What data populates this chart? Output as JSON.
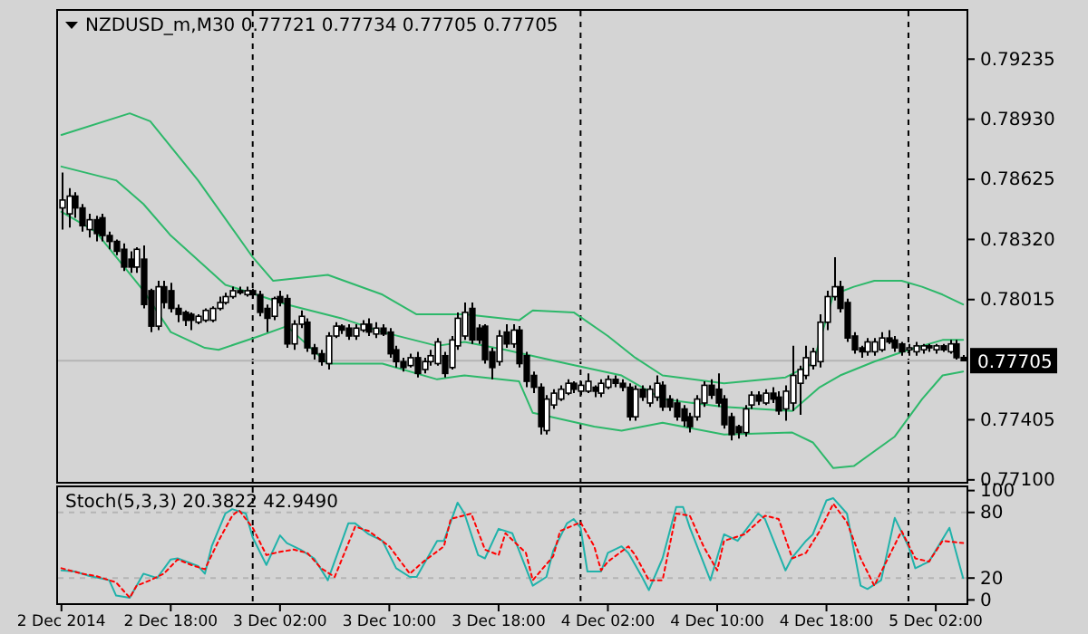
{
  "chart_data": [
    {
      "type": "candlestick",
      "title": "NZDUSD_m,M30  0.77721 0.77734 0.77705 0.77705",
      "x": [
        "2014-12-02T10:00",
        "2014-12-02T10:30",
        "2014-12-02T11:00",
        "2014-12-02T11:30",
        "2014-12-02T12:00",
        "2014-12-02T12:30",
        "2014-12-02T13:00",
        "2014-12-02T13:30",
        "2014-12-02T14:00",
        "2014-12-02T14:30",
        "2014-12-02T15:00",
        "2014-12-02T15:30",
        "2014-12-02T16:00",
        "2014-12-02T16:30",
        "2014-12-02T17:00",
        "2014-12-02T17:30",
        "2014-12-02T18:00",
        "2014-12-02T18:30",
        "2014-12-02T19:00",
        "2014-12-02T19:30",
        "2014-12-02T20:00",
        "2014-12-02T20:30",
        "2014-12-02T21:00",
        "2014-12-02T21:30",
        "2014-12-02T22:00",
        "2014-12-02T22:30",
        "2014-12-02T23:00",
        "2014-12-02T23:30",
        "2014-12-03T00:00",
        "2014-12-03T00:30",
        "2014-12-03T01:00",
        "2014-12-03T01:30",
        "2014-12-03T02:00",
        "2014-12-03T02:30",
        "2014-12-03T03:00",
        "2014-12-03T03:30",
        "2014-12-03T04:00",
        "2014-12-03T04:30",
        "2014-12-03T05:00",
        "2014-12-03T05:30",
        "2014-12-03T06:00",
        "2014-12-03T06:30",
        "2014-12-03T07:00",
        "2014-12-03T07:30",
        "2014-12-03T08:00",
        "2014-12-03T08:30",
        "2014-12-03T09:00",
        "2014-12-03T09:30",
        "2014-12-03T10:00",
        "2014-12-03T10:30",
        "2014-12-03T11:00",
        "2014-12-03T11:30",
        "2014-12-03T12:00",
        "2014-12-03T12:30",
        "2014-12-03T13:00",
        "2014-12-03T13:30",
        "2014-12-03T14:00",
        "2014-12-03T14:30",
        "2014-12-03T15:00",
        "2014-12-03T15:30",
        "2014-12-03T16:00",
        "2014-12-03T16:30",
        "2014-12-03T17:00",
        "2014-12-03T17:30",
        "2014-12-03T18:00",
        "2014-12-03T18:30",
        "2014-12-03T19:00",
        "2014-12-03T19:30",
        "2014-12-03T20:00",
        "2014-12-03T20:30",
        "2014-12-03T21:00",
        "2014-12-03T21:30",
        "2014-12-03T22:00",
        "2014-12-03T22:30",
        "2014-12-03T23:00",
        "2014-12-03T23:30",
        "2014-12-04T00:00",
        "2014-12-04T00:30",
        "2014-12-04T01:00",
        "2014-12-04T01:30",
        "2014-12-04T02:00",
        "2014-12-04T02:30",
        "2014-12-04T03:00",
        "2014-12-04T03:30",
        "2014-12-04T04:00",
        "2014-12-04T04:30",
        "2014-12-04T05:00",
        "2014-12-04T05:30",
        "2014-12-04T06:00",
        "2014-12-04T06:30",
        "2014-12-04T07:00",
        "2014-12-04T07:30",
        "2014-12-04T08:00",
        "2014-12-04T08:30",
        "2014-12-04T09:00",
        "2014-12-04T09:30",
        "2014-12-04T10:00",
        "2014-12-04T10:30",
        "2014-12-04T11:00",
        "2014-12-04T11:30",
        "2014-12-04T12:00",
        "2014-12-04T12:30",
        "2014-12-04T13:00",
        "2014-12-04T13:30",
        "2014-12-04T14:00",
        "2014-12-04T14:30",
        "2014-12-04T15:00",
        "2014-12-04T15:30",
        "2014-12-04T16:00",
        "2014-12-04T16:30",
        "2014-12-04T17:00",
        "2014-12-04T17:30",
        "2014-12-04T18:00",
        "2014-12-04T18:30",
        "2014-12-04T19:00",
        "2014-12-04T19:30",
        "2014-12-04T20:00",
        "2014-12-04T20:30",
        "2014-12-04T21:00",
        "2014-12-04T21:30",
        "2014-12-04T22:00",
        "2014-12-04T22:30",
        "2014-12-04T23:00",
        "2014-12-04T23:30",
        "2014-12-05T00:00",
        "2014-12-05T00:30",
        "2014-12-05T01:00",
        "2014-12-05T01:30",
        "2014-12-05T02:00",
        "2014-12-05T02:30",
        "2014-12-05T03:00",
        "2014-12-05T03:30",
        "2014-12-05T04:00"
      ],
      "ohlc": [
        [
          0.7848,
          0.7866,
          0.7837,
          0.7852
        ],
        [
          0.7845,
          0.7858,
          0.7838,
          0.7854
        ],
        [
          0.7854,
          0.7856,
          0.7843,
          0.7848
        ],
        [
          0.7848,
          0.785,
          0.7836,
          0.7839
        ],
        [
          0.7837,
          0.7845,
          0.7833,
          0.7842
        ],
        [
          0.7842,
          0.7844,
          0.7831,
          0.7835
        ],
        [
          0.7843,
          0.7845,
          0.7831,
          0.7834
        ],
        [
          0.7834,
          0.7836,
          0.7827,
          0.7831
        ],
        [
          0.7831,
          0.7832,
          0.7824,
          0.7826
        ],
        [
          0.7827,
          0.783,
          0.7816,
          0.7818
        ],
        [
          0.7822,
          0.7826,
          0.7815,
          0.7818
        ],
        [
          0.7818,
          0.7828,
          0.7815,
          0.7827
        ],
        [
          0.7822,
          0.7829,
          0.7797,
          0.7799
        ],
        [
          0.7806,
          0.7807,
          0.7785,
          0.7788
        ],
        [
          0.7788,
          0.7811,
          0.7786,
          0.7808
        ],
        [
          0.7808,
          0.7811,
          0.7797,
          0.78
        ],
        [
          0.7806,
          0.781,
          0.7795,
          0.7797
        ],
        [
          0.7797,
          0.7799,
          0.779,
          0.7794
        ],
        [
          0.7795,
          0.7796,
          0.7788,
          0.7791
        ],
        [
          0.7794,
          0.7795,
          0.7786,
          0.7791
        ],
        [
          0.779,
          0.7794,
          0.7789,
          0.7793
        ],
        [
          0.7791,
          0.7797,
          0.779,
          0.7796
        ],
        [
          0.7791,
          0.7798,
          0.779,
          0.7797
        ],
        [
          0.7797,
          0.7803,
          0.7796,
          0.78
        ],
        [
          0.78,
          0.7805,
          0.7799,
          0.7803
        ],
        [
          0.7803,
          0.7808,
          0.7802,
          0.7806
        ],
        [
          0.7806,
          0.7808,
          0.7804,
          0.7805
        ],
        [
          0.7804,
          0.7808,
          0.7803,
          0.7806
        ],
        [
          0.7806,
          0.7807,
          0.7802,
          0.7804
        ],
        [
          0.7804,
          0.7806,
          0.7793,
          0.7795
        ],
        [
          0.7797,
          0.7799,
          0.7785,
          0.7792
        ],
        [
          0.7793,
          0.7803,
          0.7791,
          0.7802
        ],
        [
          0.7803,
          0.7806,
          0.7798,
          0.78
        ],
        [
          0.7802,
          0.7804,
          0.7777,
          0.7779
        ],
        [
          0.7779,
          0.7791,
          0.7776,
          0.7789
        ],
        [
          0.7789,
          0.7796,
          0.7787,
          0.7793
        ],
        [
          0.779,
          0.7792,
          0.7775,
          0.7777
        ],
        [
          0.7777,
          0.7779,
          0.7771,
          0.7774
        ],
        [
          0.7774,
          0.7776,
          0.7768,
          0.777
        ],
        [
          0.7769,
          0.7785,
          0.7766,
          0.7783
        ],
        [
          0.7783,
          0.779,
          0.7782,
          0.7788
        ],
        [
          0.7788,
          0.7789,
          0.7784,
          0.7786
        ],
        [
          0.7787,
          0.7789,
          0.7781,
          0.7783
        ],
        [
          0.7783,
          0.7789,
          0.7781,
          0.7787
        ],
        [
          0.7786,
          0.7791,
          0.7785,
          0.7789
        ],
        [
          0.7789,
          0.7792,
          0.7783,
          0.7785
        ],
        [
          0.7784,
          0.779,
          0.7782,
          0.7787
        ],
        [
          0.7787,
          0.7789,
          0.7783,
          0.7784
        ],
        [
          0.7785,
          0.7787,
          0.7772,
          0.7774
        ],
        [
          0.7776,
          0.7778,
          0.7767,
          0.777
        ],
        [
          0.777,
          0.7772,
          0.7765,
          0.7767
        ],
        [
          0.7768,
          0.7774,
          0.7767,
          0.7772
        ],
        [
          0.7772,
          0.7775,
          0.7762,
          0.7764
        ],
        [
          0.7766,
          0.7772,
          0.7764,
          0.777
        ],
        [
          0.777,
          0.7776,
          0.7768,
          0.7773
        ],
        [
          0.7769,
          0.7782,
          0.7768,
          0.778
        ],
        [
          0.7773,
          0.7775,
          0.7762,
          0.7764
        ],
        [
          0.7767,
          0.7783,
          0.7766,
          0.7781
        ],
        [
          0.7778,
          0.7795,
          0.7776,
          0.7792
        ],
        [
          0.7783,
          0.78,
          0.7781,
          0.7795
        ],
        [
          0.7797,
          0.78,
          0.7779,
          0.7781
        ],
        [
          0.7787,
          0.7789,
          0.7779,
          0.7781
        ],
        [
          0.7788,
          0.7789,
          0.7769,
          0.7771
        ],
        [
          0.7775,
          0.7777,
          0.7761,
          0.7767
        ],
        [
          0.777,
          0.7786,
          0.7768,
          0.7783
        ],
        [
          0.7785,
          0.7789,
          0.7777,
          0.7779
        ],
        [
          0.7779,
          0.7789,
          0.7777,
          0.7786
        ],
        [
          0.7786,
          0.7788,
          0.7767,
          0.7769
        ],
        [
          0.7773,
          0.7775,
          0.7757,
          0.776
        ],
        [
          0.7763,
          0.7765,
          0.7754,
          0.7757
        ],
        [
          0.7757,
          0.7759,
          0.7733,
          0.7737
        ],
        [
          0.7735,
          0.7753,
          0.7733,
          0.7751
        ],
        [
          0.7748,
          0.7756,
          0.7746,
          0.7754
        ],
        [
          0.7751,
          0.7758,
          0.775,
          0.7756
        ],
        [
          0.7754,
          0.7761,
          0.7753,
          0.7759
        ],
        [
          0.7759,
          0.776,
          0.7754,
          0.7756
        ],
        [
          0.7755,
          0.776,
          0.7753,
          0.7758
        ],
        [
          0.7755,
          0.7764,
          0.7754,
          0.776
        ],
        [
          0.7757,
          0.7758,
          0.7752,
          0.7755
        ],
        [
          0.7754,
          0.7761,
          0.7752,
          0.7759
        ],
        [
          0.7757,
          0.7763,
          0.7756,
          0.7761
        ],
        [
          0.7761,
          0.7763,
          0.7757,
          0.7759
        ],
        [
          0.7759,
          0.7761,
          0.7755,
          0.7757
        ],
        [
          0.7757,
          0.7759,
          0.774,
          0.7742
        ],
        [
          0.7742,
          0.7758,
          0.774,
          0.7756
        ],
        [
          0.7756,
          0.7758,
          0.775,
          0.7752
        ],
        [
          0.7749,
          0.7758,
          0.7747,
          0.7756
        ],
        [
          0.7752,
          0.7763,
          0.775,
          0.7759
        ],
        [
          0.7758,
          0.776,
          0.7745,
          0.7747
        ],
        [
          0.7751,
          0.7753,
          0.7745,
          0.7747
        ],
        [
          0.7749,
          0.7751,
          0.774,
          0.7742
        ],
        [
          0.7746,
          0.7748,
          0.7737,
          0.774
        ],
        [
          0.7742,
          0.7744,
          0.7734,
          0.7737
        ],
        [
          0.7742,
          0.7753,
          0.774,
          0.7751
        ],
        [
          0.7749,
          0.776,
          0.7747,
          0.7758
        ],
        [
          0.7758,
          0.7761,
          0.7751,
          0.7753
        ],
        [
          0.7756,
          0.7764,
          0.7747,
          0.7749
        ],
        [
          0.7751,
          0.7753,
          0.7736,
          0.7738
        ],
        [
          0.7742,
          0.7744,
          0.773,
          0.7733
        ],
        [
          0.7737,
          0.7738,
          0.7731,
          0.7734
        ],
        [
          0.7734,
          0.7748,
          0.7732,
          0.7746
        ],
        [
          0.7748,
          0.7755,
          0.7746,
          0.7753
        ],
        [
          0.7753,
          0.7755,
          0.7748,
          0.775
        ],
        [
          0.7749,
          0.7756,
          0.7748,
          0.7754
        ],
        [
          0.7754,
          0.7757,
          0.7749,
          0.7751
        ],
        [
          0.7752,
          0.7755,
          0.7743,
          0.7745
        ],
        [
          0.7746,
          0.7758,
          0.774,
          0.7755
        ],
        [
          0.7749,
          0.7778,
          0.7745,
          0.7763
        ],
        [
          0.7759,
          0.7768,
          0.7743,
          0.7766
        ],
        [
          0.7763,
          0.7778,
          0.7761,
          0.7772
        ],
        [
          0.7768,
          0.7777,
          0.7766,
          0.7775
        ],
        [
          0.777,
          0.7794,
          0.7767,
          0.779
        ],
        [
          0.779,
          0.7806,
          0.7786,
          0.7803
        ],
        [
          0.7803,
          0.7823,
          0.7801,
          0.7808
        ],
        [
          0.7808,
          0.7811,
          0.7795,
          0.7797
        ],
        [
          0.78,
          0.7802,
          0.778,
          0.7782
        ],
        [
          0.7783,
          0.7785,
          0.7774,
          0.7776
        ],
        [
          0.7777,
          0.7778,
          0.7772,
          0.7775
        ],
        [
          0.7775,
          0.7782,
          0.7773,
          0.778
        ],
        [
          0.7775,
          0.7782,
          0.7773,
          0.778
        ],
        [
          0.7776,
          0.7785,
          0.7775,
          0.7782
        ],
        [
          0.7782,
          0.7786,
          0.7779,
          0.778
        ],
        [
          0.7781,
          0.7783,
          0.7775,
          0.7777
        ],
        [
          0.7779,
          0.778,
          0.7773,
          0.7775
        ],
        [
          0.7776,
          0.7779,
          0.7773,
          0.7777
        ],
        [
          0.7775,
          0.778,
          0.7773,
          0.7778
        ],
        [
          0.7776,
          0.7779,
          0.7774,
          0.7778
        ],
        [
          0.7778,
          0.7779,
          0.7775,
          0.7777
        ],
        [
          0.7776,
          0.7779,
          0.7774,
          0.7778
        ],
        [
          0.7778,
          0.7779,
          0.7775,
          0.7776
        ],
        [
          0.7775,
          0.7781,
          0.7774,
          0.7779
        ],
        [
          0.7779,
          0.7781,
          0.7771,
          0.7772
        ],
        [
          0.77721,
          0.77734,
          0.77705,
          0.77705
        ]
      ],
      "series": [
        {
          "type": "line",
          "color": "#2db86a",
          "x": [
            "2014-12-02T10:00",
            "2014-12-02T15:00",
            "2014-12-02T16:30",
            "2014-12-02T20:00",
            "2014-12-03T00:00",
            "2014-12-03T01:30",
            "2014-12-03T05:30",
            "2014-12-03T09:30",
            "2014-12-03T12:00",
            "2014-12-03T15:30",
            "2014-12-03T19:30",
            "2014-12-03T20:30",
            "2014-12-03T23:30",
            "2014-12-04T02:00",
            "2014-12-04T04:00",
            "2014-12-04T06:00",
            "2014-12-04T10:30",
            "2014-12-04T15:00",
            "2014-12-04T17:00",
            "2014-12-04T18:00",
            "2014-12-04T18:30",
            "2014-12-04T20:00",
            "2014-12-04T21:30",
            "2014-12-04T23:30",
            "2014-12-05T01:00",
            "2014-12-05T02:30",
            "2014-12-05T04:00"
          ],
          "values": [
            0.7885,
            0.7896,
            0.7892,
            0.7862,
            0.7823,
            0.7811,
            0.7814,
            0.7804,
            0.7794,
            0.7794,
            0.7791,
            0.7796,
            0.7795,
            0.7783,
            0.7772,
            0.7763,
            0.7759,
            0.7762,
            0.7769,
            0.7792,
            0.7804,
            0.7808,
            0.7811,
            0.7811,
            0.7808,
            0.7804,
            0.7799
          ]
        },
        {
          "type": "line",
          "color": "#2db86a",
          "x": [
            "2014-12-02T10:00",
            "2014-12-02T14:00",
            "2014-12-02T16:00",
            "2014-12-02T18:00",
            "2014-12-02T22:00",
            "2014-12-03T02:30",
            "2014-12-03T06:30",
            "2014-12-03T09:30",
            "2014-12-03T13:30",
            "2014-12-03T15:30",
            "2014-12-03T18:30",
            "2014-12-03T23:00",
            "2014-12-04T03:00",
            "2014-12-04T06:00",
            "2014-12-04T10:30",
            "2014-12-04T15:30",
            "2014-12-04T17:30",
            "2014-12-04T19:00",
            "2014-12-04T21:30",
            "2014-12-05T00:00",
            "2014-12-05T02:30",
            "2014-12-05T04:00"
          ],
          "values": [
            0.7869,
            0.7862,
            0.785,
            0.7834,
            0.7809,
            0.7799,
            0.7792,
            0.7785,
            0.7778,
            0.778,
            0.7776,
            0.7769,
            0.7763,
            0.7751,
            0.7747,
            0.7745,
            0.7757,
            0.7763,
            0.777,
            0.7776,
            0.7781,
            0.7781
          ]
        },
        {
          "type": "line",
          "color": "#2db86a",
          "x": [
            "2014-12-02T10:00",
            "2014-12-02T12:30",
            "2014-12-02T16:00",
            "2014-12-02T18:00",
            "2014-12-02T20:30",
            "2014-12-02T21:30",
            "2014-12-03T00:30",
            "2014-12-03T02:30",
            "2014-12-03T05:30",
            "2014-12-03T09:30",
            "2014-12-03T13:30",
            "2014-12-03T15:30",
            "2014-12-03T19:30",
            "2014-12-03T20:30",
            "2014-12-04T01:00",
            "2014-12-04T03:00",
            "2014-12-04T06:00",
            "2014-12-04T10:30",
            "2014-12-04T15:30",
            "2014-12-04T17:00",
            "2014-12-04T18:30",
            "2014-12-04T20:00",
            "2014-12-04T23:00",
            "2014-12-05T01:00",
            "2014-12-05T02:30",
            "2014-12-05T04:00"
          ],
          "values": [
            0.7846,
            0.7836,
            0.7806,
            0.7785,
            0.7777,
            0.7776,
            0.7783,
            0.7788,
            0.7769,
            0.7769,
            0.7761,
            0.7763,
            0.776,
            0.7744,
            0.7737,
            0.7735,
            0.7739,
            0.7733,
            0.7734,
            0.7729,
            0.7716,
            0.7717,
            0.7732,
            0.7751,
            0.7763,
            0.7765
          ]
        }
      ],
      "xlim": [
        "2014-12-02T09:45",
        "2014-12-05T04:15"
      ],
      "ylim": [
        0.7709,
        0.7948
      ],
      "yticks": [
        {
          "value": 0.79235,
          "label": "0.79235"
        },
        {
          "value": 0.7893,
          "label": "0.78930"
        },
        {
          "value": 0.78625,
          "label": "0.78625"
        },
        {
          "value": 0.7832,
          "label": "0.78320"
        },
        {
          "value": 0.78015,
          "label": "0.78015"
        },
        {
          "value": 0.77405,
          "label": "0.77405"
        },
        {
          "value": 0.771,
          "label": "0.77100"
        }
      ],
      "tick_labels": "y",
      "ref_lines": [
        {
          "axis": "x",
          "value": "2014-12-03T00:00",
          "line_style": "dashed",
          "color": "#000000"
        },
        {
          "axis": "x",
          "value": "2014-12-04T00:00",
          "line_style": "dashed",
          "color": "#000000"
        },
        {
          "axis": "x",
          "value": "2014-12-05T00:00",
          "line_style": "dashed",
          "color": "#000000"
        },
        {
          "axis": "y",
          "value": 0.77705,
          "label": "0.77705",
          "color": "#b4b4b4"
        }
      ]
    },
    {
      "type": "line",
      "title": "Stoch(5,3,3) 20.3822 42.9490",
      "series": [
        {
          "color": "#20b2aa",
          "x": [
            "2014-12-02T10:00",
            "2014-12-02T11:00",
            "2014-12-02T12:00",
            "2014-12-02T13:30",
            "2014-12-02T14:00",
            "2014-12-02T15:00",
            "2014-12-02T16:00",
            "2014-12-02T17:00",
            "2014-12-02T18:00",
            "2014-12-02T18:30",
            "2014-12-02T20:00",
            "2014-12-02T20:30",
            "2014-12-02T21:00",
            "2014-12-02T22:00",
            "2014-12-02T22:30",
            "2014-12-02T23:30",
            "2014-12-03T00:00",
            "2014-12-03T01:00",
            "2014-12-03T02:00",
            "2014-12-03T02:30",
            "2014-12-03T03:30",
            "2014-12-03T04:30",
            "2014-12-03T05:30",
            "2014-12-03T07:00",
            "2014-12-03T07:30",
            "2014-12-03T08:30",
            "2014-12-03T09:30",
            "2014-12-03T10:30",
            "2014-12-03T11:30",
            "2014-12-03T12:00",
            "2014-12-03T13:30",
            "2014-12-03T14:00",
            "2014-12-03T15:00",
            "2014-12-03T15:30",
            "2014-12-03T16:30",
            "2014-12-03T17:00",
            "2014-12-03T18:00",
            "2014-12-03T19:00",
            "2014-12-03T20:30",
            "2014-12-03T21:30",
            "2014-12-03T22:00",
            "2014-12-03T23:00",
            "2014-12-03T23:30",
            "2014-12-04T00:00",
            "2014-12-04T00:30",
            "2014-12-04T01:30",
            "2014-12-04T02:00",
            "2014-12-04T03:00",
            "2014-12-04T03:30",
            "2014-12-04T04:30",
            "2014-12-04T05:00",
            "2014-12-04T06:00",
            "2014-12-04T07:00",
            "2014-12-04T07:30",
            "2014-12-04T08:00",
            "2014-12-04T09:30",
            "2014-12-04T10:30",
            "2014-12-04T11:30",
            "2014-12-04T13:00",
            "2014-12-04T13:30",
            "2014-12-04T15:00",
            "2014-12-04T15:30",
            "2014-12-04T16:30",
            "2014-12-04T17:00",
            "2014-12-04T18:00",
            "2014-12-04T18:30",
            "2014-12-04T19:30",
            "2014-12-04T20:30",
            "2014-12-04T21:00",
            "2014-12-04T22:00",
            "2014-12-04T23:00",
            "2014-12-05T00:00",
            "2014-12-05T00:30",
            "2014-12-05T01:30",
            "2014-12-05T03:00",
            "2014-12-05T03:30",
            "2014-12-05T04:00"
          ],
          "values": [
            27,
            26,
            22,
            18,
            4,
            2,
            24,
            20,
            37,
            38,
            31,
            24,
            49,
            79,
            83,
            79,
            57,
            32,
            59,
            52,
            46,
            38,
            18,
            70,
            70,
            60,
            54,
            29,
            21,
            21,
            54,
            54,
            89,
            79,
            41,
            38,
            65,
            61,
            13,
            21,
            45,
            70,
            74,
            66,
            26,
            26,
            43,
            49,
            43,
            21,
            9,
            38,
            85,
            85,
            66,
            18,
            60,
            54,
            79,
            74,
            27,
            39,
            54,
            60,
            91,
            93,
            79,
            13,
            10,
            18,
            75,
            49,
            29,
            35,
            66,
            43,
            20
          ]
        },
        {
          "color": "#ff0000",
          "line_style": "dotted",
          "x": [
            "2014-12-02T10:00",
            "2014-12-02T11:30",
            "2014-12-02T12:30",
            "2014-12-02T14:00",
            "2014-12-02T15:00",
            "2014-12-02T15:30",
            "2014-12-02T16:30",
            "2014-12-02T17:30",
            "2014-12-02T18:30",
            "2014-12-02T19:30",
            "2014-12-02T20:30",
            "2014-12-02T21:30",
            "2014-12-02T22:30",
            "2014-12-02T23:00",
            "2014-12-03T00:00",
            "2014-12-03T01:00",
            "2014-12-03T02:00",
            "2014-12-03T03:00",
            "2014-12-03T04:00",
            "2014-12-03T05:00",
            "2014-12-03T06:00",
            "2014-12-03T07:30",
            "2014-12-03T08:30",
            "2014-12-03T10:00",
            "2014-12-03T11:30",
            "2014-12-03T12:30",
            "2014-12-03T14:00",
            "2014-12-03T14:30",
            "2014-12-03T16:00",
            "2014-12-03T17:00",
            "2014-12-03T18:00",
            "2014-12-03T18:30",
            "2014-12-03T20:00",
            "2014-12-03T20:30",
            "2014-12-03T22:00",
            "2014-12-03T22:30",
            "2014-12-04T00:00",
            "2014-12-04T01:00",
            "2014-12-04T01:30",
            "2014-12-04T02:00",
            "2014-12-04T03:30",
            "2014-12-04T04:00",
            "2014-12-04T05:00",
            "2014-12-04T06:00",
            "2014-12-04T07:00",
            "2014-12-04T08:00",
            "2014-12-04T09:00",
            "2014-12-04T10:00",
            "2014-12-04T10:30",
            "2014-12-04T12:00",
            "2014-12-04T13:30",
            "2014-12-04T14:30",
            "2014-12-04T15:30",
            "2014-12-04T16:30",
            "2014-12-04T17:30",
            "2014-12-04T18:30",
            "2014-12-04T19:30",
            "2014-12-04T20:30",
            "2014-12-04T21:30",
            "2014-12-04T22:30",
            "2014-12-04T23:30",
            "2014-12-05T00:30",
            "2014-12-05T01:30",
            "2014-12-05T02:30",
            "2014-12-05T04:00"
          ],
          "values": [
            29,
            24,
            22,
            16,
            2,
            13,
            18,
            24,
            37,
            32,
            28,
            54,
            77,
            82,
            66,
            41,
            44,
            46,
            43,
            29,
            21,
            67,
            63,
            49,
            24,
            35,
            49,
            74,
            79,
            46,
            41,
            61,
            43,
            18,
            40,
            63,
            71,
            49,
            27,
            35,
            49,
            41,
            18,
            18,
            79,
            77,
            49,
            27,
            54,
            60,
            77,
            74,
            38,
            43,
            63,
            88,
            71,
            38,
            13,
            38,
            63,
            38,
            35,
            54,
            52
          ]
        }
      ],
      "xlim": [
        "2014-12-02T09:45",
        "2014-12-05T04:15"
      ],
      "ylim": [
        -3,
        103
      ],
      "xticks": [
        {
          "value": "2014-12-02T10:00",
          "label": "2 Dec 2014"
        },
        {
          "value": "2014-12-02T18:00",
          "label": "2 Dec 18:00"
        },
        {
          "value": "2014-12-03T02:00",
          "label": "3 Dec 02:00"
        },
        {
          "value": "2014-12-03T10:00",
          "label": "3 Dec 10:00"
        },
        {
          "value": "2014-12-03T18:00",
          "label": "3 Dec 18:00"
        },
        {
          "value": "2014-12-04T02:00",
          "label": "4 Dec 02:00"
        },
        {
          "value": "2014-12-04T10:00",
          "label": "4 Dec 10:00"
        },
        {
          "value": "2014-12-04T18:00",
          "label": "4 Dec 18:00"
        },
        {
          "value": "2014-12-05T02:00",
          "label": "5 Dec 02:00"
        }
      ],
      "yticks": [
        0,
        20,
        80,
        100
      ],
      "ref_lines": [
        {
          "axis": "x",
          "value": "2014-12-03T00:00",
          "line_style": "dashed",
          "color": "#000000"
        },
        {
          "axis": "x",
          "value": "2014-12-04T00:00",
          "line_style": "dashed",
          "color": "#000000"
        },
        {
          "axis": "x",
          "value": "2014-12-05T00:00",
          "line_style": "dashed",
          "color": "#000000"
        },
        {
          "axis": "y",
          "value": 20,
          "line_style": "dashed",
          "color": "#b4b4b4"
        },
        {
          "axis": "y",
          "value": 80,
          "line_style": "dashed",
          "color": "#b4b4b4"
        }
      ]
    }
  ]
}
